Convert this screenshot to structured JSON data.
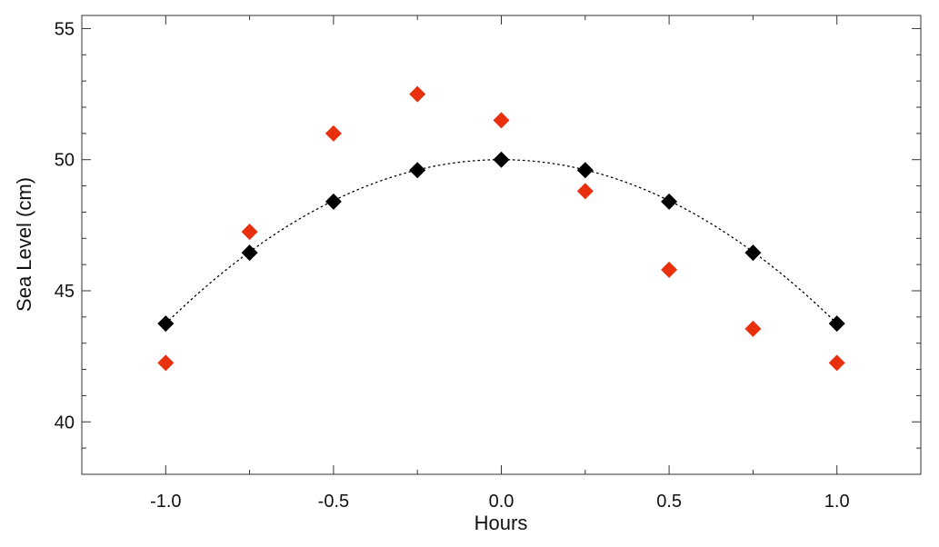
{
  "chart_data": {
    "type": "scatter",
    "title": "",
    "xlabel": "Hours",
    "ylabel": "Sea Level (cm)",
    "xlim": [
      -1.25,
      1.25
    ],
    "ylim": [
      38,
      55.5
    ],
    "x_ticks": [
      -1.0,
      -0.5,
      0.0,
      0.5,
      1.0
    ],
    "x_tick_labels": [
      "-1.0",
      "-0.5",
      "0.0",
      "0.5",
      "1.0"
    ],
    "y_ticks": [
      40,
      45,
      50,
      55
    ],
    "y_tick_labels": [
      "40",
      "45",
      "50",
      "55"
    ],
    "grid": false,
    "legend": "none",
    "series": [
      {
        "marker": "diamond",
        "color": "#000000",
        "x": [
          -1.0,
          -0.75,
          -0.5,
          -0.25,
          0.0,
          0.25,
          0.5,
          0.75,
          1.0
        ],
        "y": [
          43.75,
          46.45,
          48.4,
          49.6,
          50.0,
          49.6,
          48.4,
          46.45,
          43.75
        ]
      },
      {
        "marker": "diamond",
        "color": "#e8300f",
        "x": [
          -1.0,
          -0.75,
          -0.5,
          -0.25,
          0.0,
          0.25,
          0.5,
          0.75,
          1.0
        ],
        "y": [
          42.25,
          47.25,
          51.0,
          52.5,
          51.5,
          48.8,
          45.8,
          43.55,
          42.25
        ]
      }
    ],
    "fit_curve": {
      "style": "dotted",
      "color": "#000000",
      "form": "y = 50 - 6.25 * x^2",
      "x_range": [
        -1.0,
        1.0
      ]
    }
  }
}
